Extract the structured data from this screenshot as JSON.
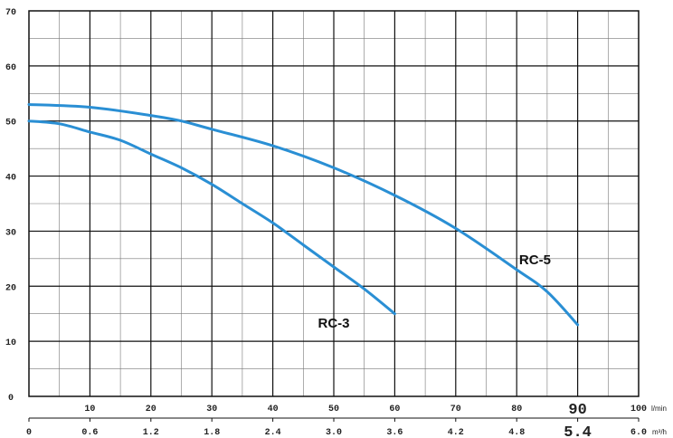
{
  "chart_data": {
    "type": "line",
    "title": "",
    "xlabel": "",
    "ylabel": "",
    "x_unit": "l/min",
    "x2_unit": "m³/h",
    "xlim": [
      0,
      100
    ],
    "ylim": [
      0,
      70
    ],
    "grid": true,
    "y_ticks": [
      "0",
      "10",
      "20",
      "30",
      "40",
      "50",
      "60",
      "70"
    ],
    "x_ticks": [
      {
        "v": 10,
        "label": "10"
      },
      {
        "v": 20,
        "label": "20"
      },
      {
        "v": 30,
        "label": "30"
      },
      {
        "v": 40,
        "label": "40"
      },
      {
        "v": 50,
        "label": "50"
      },
      {
        "v": 60,
        "label": "60"
      },
      {
        "v": 70,
        "label": "70"
      },
      {
        "v": 80,
        "label": "80"
      },
      {
        "v": 90,
        "label": "90",
        "emphasis": true
      },
      {
        "v": 100,
        "label": "100"
      }
    ],
    "x2_ticks": [
      {
        "v": 0,
        "label": "0"
      },
      {
        "v": 10,
        "label": "0.6"
      },
      {
        "v": 20,
        "label": "1.2"
      },
      {
        "v": 30,
        "label": "1.8"
      },
      {
        "v": 40,
        "label": "2.4"
      },
      {
        "v": 50,
        "label": "3.0"
      },
      {
        "v": 60,
        "label": "3.6"
      },
      {
        "v": 70,
        "label": "4.2"
      },
      {
        "v": 80,
        "label": "4.8"
      },
      {
        "v": 90,
        "label": "5.4",
        "emphasis": true
      },
      {
        "v": 100,
        "label": "6.0"
      }
    ],
    "series": [
      {
        "name": "RC-3",
        "color": "#2a8fd4",
        "x": [
          0,
          5,
          10,
          15,
          20,
          25,
          30,
          35,
          40,
          45,
          50,
          55,
          60
        ],
        "y": [
          50,
          49.5,
          48,
          46.5,
          44,
          41.5,
          38.5,
          35,
          31.5,
          27.5,
          23.5,
          19.5,
          15
        ]
      },
      {
        "name": "RC-5",
        "color": "#2a8fd4",
        "x": [
          0,
          10,
          20,
          25,
          30,
          40,
          50,
          60,
          70,
          80,
          85,
          90
        ],
        "y": [
          53,
          52.5,
          51,
          50,
          48.5,
          45.5,
          41.5,
          36.5,
          30.5,
          23,
          19,
          13
        ]
      }
    ],
    "labels": [
      {
        "text": "RC-3",
        "x": 50,
        "y": 12.5
      },
      {
        "text": "RC-5",
        "x": 83,
        "y": 24
      }
    ]
  }
}
